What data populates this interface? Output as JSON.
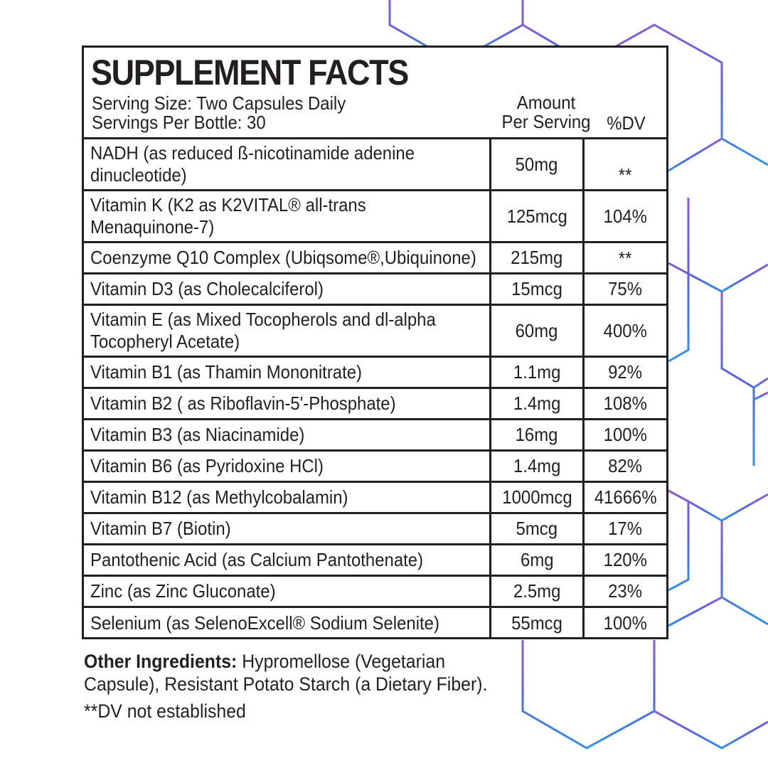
{
  "colors": {
    "text": "#231f20",
    "hex_top": "#7b4fd6",
    "hex_bottom": "#2f8fe6"
  },
  "label": {
    "title": "SUPPLEMENT FACTS",
    "serving_size": "Serving Size: Two Capsules Daily",
    "servings_per_bottle": "Servings Per Bottle: 30",
    "amount_header_line1": "Amount",
    "amount_header_line2": "Per Serving",
    "dv_header": "%DV",
    "rows": [
      {
        "name": [
          "NADH (as reduced ß-nicotinamide adenine",
          "dinucleotide)"
        ],
        "amount": "50mg",
        "dv": "**"
      },
      {
        "name": [
          "Vitamin K (K2 as K2VITAL® all-trans",
          "Menaquinone-7)"
        ],
        "amount": "125mcg",
        "dv": "104%"
      },
      {
        "name": [
          "Coenzyme Q10 Complex (Ubiqsome®,Ubiquinone)"
        ],
        "amount": "215mg",
        "dv": "**"
      },
      {
        "name": [
          "Vitamin D3 (as Cholecalciferol)"
        ],
        "amount": "15mcg",
        "dv": "75%"
      },
      {
        "name": [
          "Vitamin E (as Mixed Tocopherols and dl-alpha",
          "Tocopheryl Acetate)"
        ],
        "amount": "60mg",
        "dv": "400%"
      },
      {
        "name": [
          "Vitamin B1 (as Thamin Mononitrate)"
        ],
        "amount": "1.1mg",
        "dv": "92%"
      },
      {
        "name": [
          "Vitamin B2 ( as Riboflavin-5'-Phosphate)"
        ],
        "amount": "1.4mg",
        "dv": "108%"
      },
      {
        "name": [
          "Vitamin B3 (as Niacinamide)"
        ],
        "amount": "16mg",
        "dv": "100%"
      },
      {
        "name": [
          "Vitamin B6 (as Pyridoxine HCl)"
        ],
        "amount": "1.4mg",
        "dv": "82%"
      },
      {
        "name": [
          "Vitamin B12 (as Methylcobalamin)"
        ],
        "amount": "1000mcg",
        "dv": "41666%"
      },
      {
        "name": [
          "Vitamin B7 (Biotin)"
        ],
        "amount": "5mcg",
        "dv": "17%"
      },
      {
        "name": [
          "Pantothenic Acid (as Calcium Pantothenate)"
        ],
        "amount": "6mg",
        "dv": "120%"
      },
      {
        "name": [
          "Zinc (as Zinc Gluconate)"
        ],
        "amount": "2.5mg",
        "dv": "23%"
      },
      {
        "name": [
          "Selenium (as SelenoExcell® Sodium Selenite)"
        ],
        "amount": "55mcg",
        "dv": "100%"
      }
    ]
  },
  "footer": {
    "other_label": "Other Ingredients:",
    "other_line1": " Hypromellose (Vegetarian",
    "other_line2": "Capsule), Resistant Potato Starch (a Dietary Fiber).",
    "note": "**DV not established"
  }
}
